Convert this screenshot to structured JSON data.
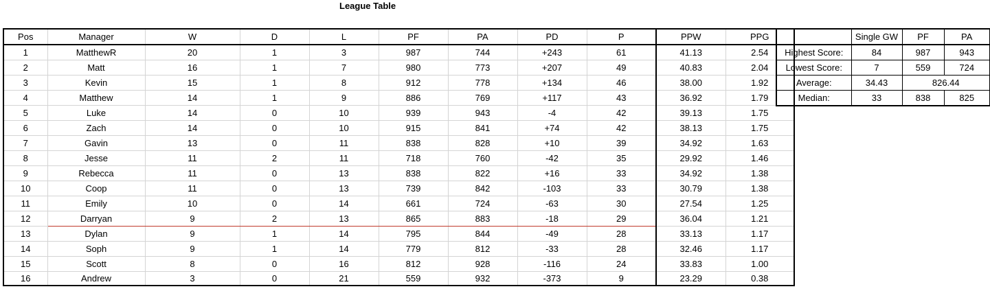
{
  "title": "League Table",
  "league": {
    "headers": [
      "Pos",
      "Manager",
      "W",
      "D",
      "L",
      "PF",
      "PA",
      "PD",
      "P",
      "PPW",
      "PPG"
    ],
    "rows": [
      [
        "1",
        "MatthewR",
        "20",
        "1",
        "3",
        "987",
        "744",
        "+243",
        "61",
        "41.13",
        "2.54"
      ],
      [
        "2",
        "Matt",
        "16",
        "1",
        "7",
        "980",
        "773",
        "+207",
        "49",
        "40.83",
        "2.04"
      ],
      [
        "3",
        "Kevin",
        "15",
        "1",
        "8",
        "912",
        "778",
        "+134",
        "46",
        "38.00",
        "1.92"
      ],
      [
        "4",
        "Matthew",
        "14",
        "1",
        "9",
        "886",
        "769",
        "+117",
        "43",
        "36.92",
        "1.79"
      ],
      [
        "5",
        "Luke",
        "14",
        "0",
        "10",
        "939",
        "943",
        "-4",
        "42",
        "39.13",
        "1.75"
      ],
      [
        "6",
        "Zach",
        "14",
        "0",
        "10",
        "915",
        "841",
        "+74",
        "42",
        "38.13",
        "1.75"
      ],
      [
        "7",
        "Gavin",
        "13",
        "0",
        "11",
        "838",
        "828",
        "+10",
        "39",
        "34.92",
        "1.63"
      ],
      [
        "8",
        "Jesse",
        "11",
        "2",
        "11",
        "718",
        "760",
        "-42",
        "35",
        "29.92",
        "1.46"
      ],
      [
        "9",
        "Rebecca",
        "11",
        "0",
        "13",
        "838",
        "822",
        "+16",
        "33",
        "34.92",
        "1.38"
      ],
      [
        "10",
        "Coop",
        "11",
        "0",
        "13",
        "739",
        "842",
        "-103",
        "33",
        "30.79",
        "1.38"
      ],
      [
        "11",
        "Emily",
        "10",
        "0",
        "14",
        "661",
        "724",
        "-63",
        "30",
        "27.54",
        "1.25"
      ],
      [
        "12",
        "Darryan",
        "9",
        "2",
        "13",
        "865",
        "883",
        "-18",
        "29",
        "36.04",
        "1.21"
      ],
      [
        "13",
        "Dylan",
        "9",
        "1",
        "14",
        "795",
        "844",
        "-49",
        "28",
        "33.13",
        "1.17"
      ],
      [
        "14",
        "Soph",
        "9",
        "1",
        "14",
        "779",
        "812",
        "-33",
        "28",
        "32.46",
        "1.17"
      ],
      [
        "15",
        "Scott",
        "8",
        "0",
        "16",
        "812",
        "928",
        "-116",
        "24",
        "33.83",
        "1.00"
      ],
      [
        "16",
        "Andrew",
        "3",
        "0",
        "21",
        "559",
        "932",
        "-373",
        "9",
        "23.29",
        "0.38"
      ]
    ]
  },
  "stats": {
    "headers": [
      "",
      "Single GW",
      "PF",
      "PA"
    ],
    "highest": {
      "label": "Highest Score:",
      "gw": "84",
      "pf": "987",
      "pa": "943"
    },
    "lowest": {
      "label": "Lowest Score:",
      "gw": "7",
      "pf": "559",
      "pa": "724"
    },
    "average": {
      "label": "Average:",
      "gw": "34.43",
      "pfpa": "826.44"
    },
    "median": {
      "label": "Median:",
      "gw": "33",
      "pf": "838",
      "pa": "825"
    }
  },
  "relegation_line_after_row": 12,
  "relegation_line_color": "#c0392b"
}
